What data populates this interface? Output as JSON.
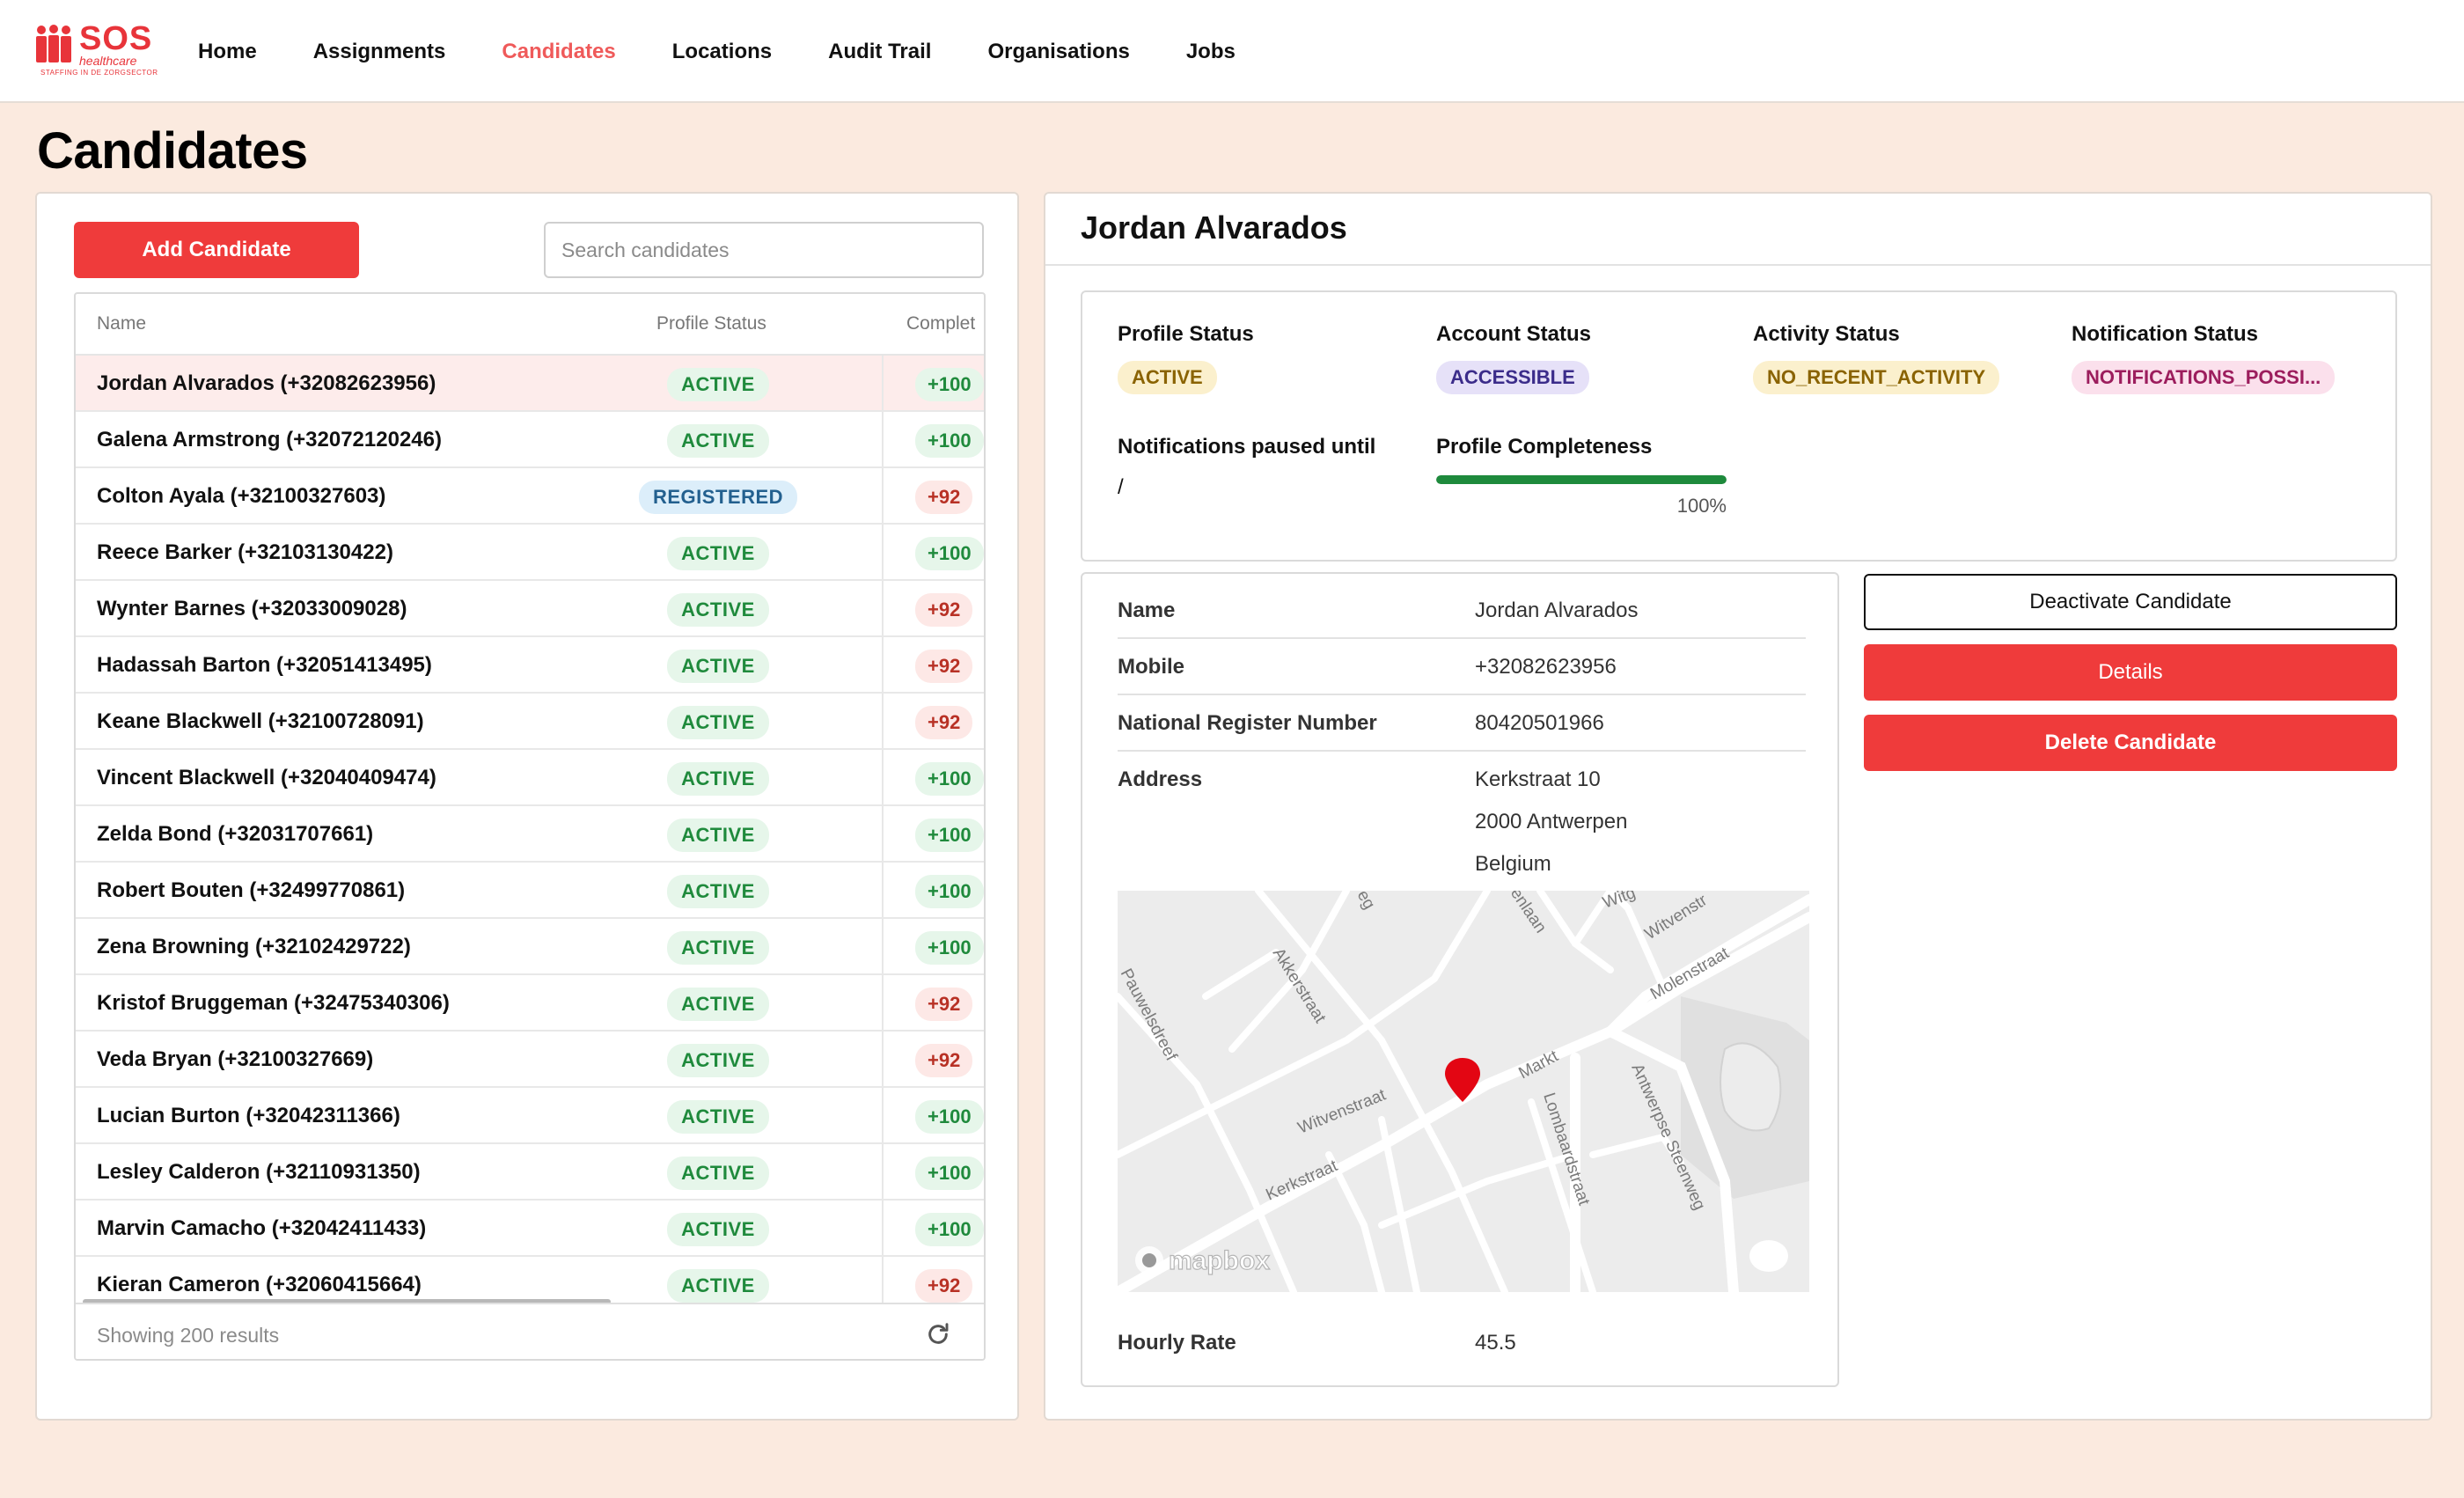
{
  "brand": {
    "name": "SOS",
    "sub": "healthcare",
    "tagline": "STAFFING IN DE ZORGSECTOR",
    "color": "#e8343a"
  },
  "nav": {
    "items": [
      {
        "label": "Home",
        "active": false
      },
      {
        "label": "Assignments",
        "active": false
      },
      {
        "label": "Candidates",
        "active": true
      },
      {
        "label": "Locations",
        "active": false
      },
      {
        "label": "Audit Trail",
        "active": false
      },
      {
        "label": "Organisations",
        "active": false
      },
      {
        "label": "Jobs",
        "active": false
      }
    ]
  },
  "page": {
    "title": "Candidates"
  },
  "list": {
    "add_label": "Add Candidate",
    "search_placeholder": "Search candidates",
    "columns": {
      "name": "Name",
      "status": "Profile Status",
      "completeness": "Complet"
    },
    "rows": [
      {
        "name": "Jordan Alvarados (+32082623956)",
        "status": "ACTIVE",
        "completeness": "+100",
        "selected": true
      },
      {
        "name": "Galena Armstrong (+32072120246)",
        "status": "ACTIVE",
        "completeness": "+100",
        "selected": false
      },
      {
        "name": "Colton Ayala (+32100327603)",
        "status": "REGISTERED",
        "completeness": "+92",
        "selected": false
      },
      {
        "name": "Reece Barker (+32103130422)",
        "status": "ACTIVE",
        "completeness": "+100",
        "selected": false
      },
      {
        "name": "Wynter Barnes (+32033009028)",
        "status": "ACTIVE",
        "completeness": "+92",
        "selected": false
      },
      {
        "name": "Hadassah Barton (+32051413495)",
        "status": "ACTIVE",
        "completeness": "+92",
        "selected": false
      },
      {
        "name": "Keane Blackwell (+32100728091)",
        "status": "ACTIVE",
        "completeness": "+92",
        "selected": false
      },
      {
        "name": "Vincent Blackwell (+32040409474)",
        "status": "ACTIVE",
        "completeness": "+100",
        "selected": false
      },
      {
        "name": "Zelda Bond (+32031707661)",
        "status": "ACTIVE",
        "completeness": "+100",
        "selected": false
      },
      {
        "name": "Robert Bouten (+32499770861)",
        "status": "ACTIVE",
        "completeness": "+100",
        "selected": false
      },
      {
        "name": "Zena Browning (+32102429722)",
        "status": "ACTIVE",
        "completeness": "+100",
        "selected": false
      },
      {
        "name": "Kristof Bruggeman (+32475340306)",
        "status": "ACTIVE",
        "completeness": "+92",
        "selected": false
      },
      {
        "name": "Veda Bryan (+32100327669)",
        "status": "ACTIVE",
        "completeness": "+92",
        "selected": false
      },
      {
        "name": "Lucian Burton (+32042311366)",
        "status": "ACTIVE",
        "completeness": "+100",
        "selected": false
      },
      {
        "name": "Lesley Calderon (+32110931350)",
        "status": "ACTIVE",
        "completeness": "+100",
        "selected": false
      },
      {
        "name": "Marvin Camacho (+32042411433)",
        "status": "ACTIVE",
        "completeness": "+100",
        "selected": false
      },
      {
        "name": "Kieran Cameron (+32060415664)",
        "status": "ACTIVE",
        "completeness": "+92",
        "selected": false
      }
    ],
    "footer_text": "Showing 200 results"
  },
  "detail": {
    "title": "Jordan Alvarados",
    "statuses": {
      "profile_label": "Profile Status",
      "profile_value": "ACTIVE",
      "account_label": "Account Status",
      "account_value": "ACCESSIBLE",
      "activity_label": "Activity Status",
      "activity_value": "NO_RECENT_ACTIVITY",
      "notification_label": "Notification Status",
      "notification_value": "NOTIFICATIONS_POSSI...",
      "paused_label": "Notifications paused until",
      "paused_value": "/",
      "completeness_label": "Profile Completeness",
      "completeness_value": 100,
      "completeness_text": "100%"
    },
    "info": {
      "name_label": "Name",
      "name_value": "Jordan Alvarados",
      "mobile_label": "Mobile",
      "mobile_value": "+32082623956",
      "nrn_label": "National Register Number",
      "nrn_value": "80420501966",
      "address_label": "Address",
      "address_line1": "Kerkstraat 10",
      "address_line2": "2000 Antwerpen",
      "address_line3": "Belgium",
      "rate_label": "Hourly Rate",
      "rate_value": "45.5"
    },
    "map": {
      "streets": [
        "Pauwelsdreef",
        "Akkerstraat",
        "Witvenstraat",
        "Kerkstraat",
        "Markt",
        "Lombaardstraat",
        "Antwerpse Steenweg",
        "Molenstraat",
        "Witvenstr",
        "enlaan",
        "Witg",
        "eg"
      ],
      "attribution": "mapbox",
      "marker_color": "#e30613"
    },
    "actions": {
      "deactivate": "Deactivate Candidate",
      "details": "Details",
      "delete": "Delete Candidate"
    }
  }
}
